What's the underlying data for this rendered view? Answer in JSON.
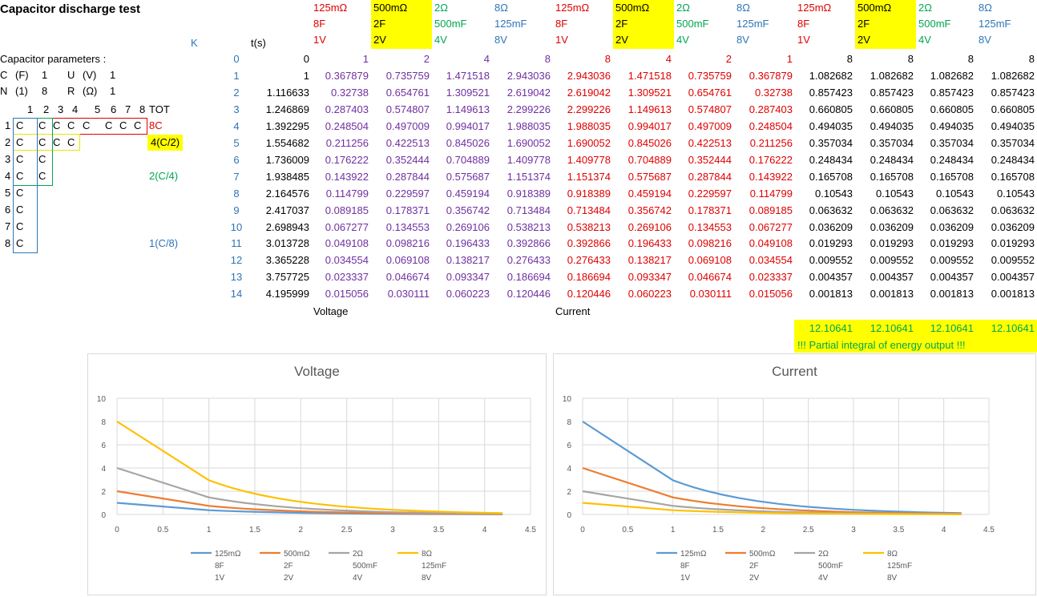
{
  "title": "Capacitor discharge test",
  "params": {
    "heading": "Capacitor parameters :",
    "row1": [
      "C",
      "(F)",
      "1",
      "U",
      "(V)",
      "1"
    ],
    "row2": [
      "N",
      "(1)",
      "8",
      "R",
      "(Ω)",
      "1"
    ]
  },
  "grid": {
    "cols": [
      "1",
      "2",
      "3",
      "4",
      "5",
      "6",
      "7",
      "8",
      "TOT"
    ],
    "rows": [
      {
        "n": "1",
        "cells": [
          "C",
          "C",
          "C",
          "C",
          "C",
          "C",
          "C",
          "C"
        ],
        "tot": "8C",
        "tot_color": "red"
      },
      {
        "n": "2",
        "cells": [
          "C",
          "C",
          "C",
          "C"
        ],
        "tot": "4(C/2)",
        "tot_color": "black"
      },
      {
        "n": "3",
        "cells": [
          "C",
          "C"
        ],
        "tot": "",
        "tot_color": "green"
      },
      {
        "n": "4",
        "cells": [
          "C",
          "C"
        ],
        "tot": "2(C/4)",
        "tot_color": "green"
      },
      {
        "n": "5",
        "cells": [
          "C"
        ],
        "tot": "",
        "tot_color": "blue"
      },
      {
        "n": "6",
        "cells": [
          "C"
        ],
        "tot": "",
        "tot_color": "blue"
      },
      {
        "n": "7",
        "cells": [
          "C"
        ],
        "tot": "",
        "tot_color": "blue"
      },
      {
        "n": "8",
        "cells": [
          "C"
        ],
        "tot": "1(C/8)",
        "tot_color": "blue"
      }
    ]
  },
  "table": {
    "k_label": "K",
    "t_label": "t(s)",
    "headers": [
      [
        "125mΩ",
        "8F",
        "1V"
      ],
      [
        "500mΩ",
        "2F",
        "2V"
      ],
      [
        "2Ω",
        "500mF",
        "4V"
      ],
      [
        "8Ω",
        "125mF",
        "8V"
      ],
      [
        "125mΩ",
        "8F",
        "1V"
      ],
      [
        "500mΩ",
        "2F",
        "2V"
      ],
      [
        "2Ω",
        "500mF",
        "4V"
      ],
      [
        "8Ω",
        "125mF",
        "8V"
      ],
      [
        "125mΩ",
        "8F",
        "1V"
      ],
      [
        "500mΩ",
        "2F",
        "2V"
      ],
      [
        "2Ω",
        "500mF",
        "4V"
      ],
      [
        "8Ω",
        "125mF",
        "8V"
      ]
    ],
    "header_colors": [
      "red",
      "black",
      "green",
      "blue",
      "red",
      "black",
      "green",
      "blue",
      "red",
      "black",
      "green",
      "blue"
    ],
    "rows": [
      {
        "k": "0",
        "t": "0",
        "v": [
          "1",
          "2",
          "4",
          "8",
          "8",
          "4",
          "2",
          "1",
          "8",
          "8",
          "8",
          "8"
        ]
      },
      {
        "k": "1",
        "t": "1",
        "v": [
          "0.367879",
          "0.735759",
          "1.471518",
          "2.943036",
          "2.943036",
          "1.471518",
          "0.735759",
          "0.367879",
          "1.082682",
          "1.082682",
          "1.082682",
          "1.082682"
        ]
      },
      {
        "k": "2",
        "t": "1.116633",
        "v": [
          "0.32738",
          "0.654761",
          "1.309521",
          "2.619042",
          "2.619042",
          "1.309521",
          "0.654761",
          "0.32738",
          "0.857423",
          "0.857423",
          "0.857423",
          "0.857423"
        ]
      },
      {
        "k": "3",
        "t": "1.246869",
        "v": [
          "0.287403",
          "0.574807",
          "1.149613",
          "2.299226",
          "2.299226",
          "1.149613",
          "0.574807",
          "0.287403",
          "0.660805",
          "0.660805",
          "0.660805",
          "0.660805"
        ]
      },
      {
        "k": "4",
        "t": "1.392295",
        "v": [
          "0.248504",
          "0.497009",
          "0.994017",
          "1.988035",
          "1.988035",
          "0.994017",
          "0.497009",
          "0.248504",
          "0.494035",
          "0.494035",
          "0.494035",
          "0.494035"
        ]
      },
      {
        "k": "5",
        "t": "1.554682",
        "v": [
          "0.211256",
          "0.422513",
          "0.845026",
          "1.690052",
          "1.690052",
          "0.845026",
          "0.422513",
          "0.211256",
          "0.357034",
          "0.357034",
          "0.357034",
          "0.357034"
        ]
      },
      {
        "k": "6",
        "t": "1.736009",
        "v": [
          "0.176222",
          "0.352444",
          "0.704889",
          "1.409778",
          "1.409778",
          "0.704889",
          "0.352444",
          "0.176222",
          "0.248434",
          "0.248434",
          "0.248434",
          "0.248434"
        ]
      },
      {
        "k": "7",
        "t": "1.938485",
        "v": [
          "0.143922",
          "0.287844",
          "0.575687",
          "1.151374",
          "1.151374",
          "0.575687",
          "0.287844",
          "0.143922",
          "0.165708",
          "0.165708",
          "0.165708",
          "0.165708"
        ]
      },
      {
        "k": "8",
        "t": "2.164576",
        "v": [
          "0.114799",
          "0.229597",
          "0.459194",
          "0.918389",
          "0.918389",
          "0.459194",
          "0.229597",
          "0.114799",
          "0.10543",
          "0.10543",
          "0.10543",
          "0.10543"
        ]
      },
      {
        "k": "9",
        "t": "2.417037",
        "v": [
          "0.089185",
          "0.178371",
          "0.356742",
          "0.713484",
          "0.713484",
          "0.356742",
          "0.178371",
          "0.089185",
          "0.063632",
          "0.063632",
          "0.063632",
          "0.063632"
        ]
      },
      {
        "k": "10",
        "t": "2.698943",
        "v": [
          "0.067277",
          "0.134553",
          "0.269106",
          "0.538213",
          "0.538213",
          "0.269106",
          "0.134553",
          "0.067277",
          "0.036209",
          "0.036209",
          "0.036209",
          "0.036209"
        ]
      },
      {
        "k": "11",
        "t": "3.013728",
        "v": [
          "0.049108",
          "0.098216",
          "0.196433",
          "0.392866",
          "0.392866",
          "0.196433",
          "0.098216",
          "0.049108",
          "0.019293",
          "0.019293",
          "0.019293",
          "0.019293"
        ]
      },
      {
        "k": "12",
        "t": "3.365228",
        "v": [
          "0.034554",
          "0.069108",
          "0.138217",
          "0.276433",
          "0.276433",
          "0.138217",
          "0.069108",
          "0.034554",
          "0.009552",
          "0.009552",
          "0.009552",
          "0.009552"
        ]
      },
      {
        "k": "13",
        "t": "3.757725",
        "v": [
          "0.023337",
          "0.046674",
          "0.093347",
          "0.186694",
          "0.186694",
          "0.093347",
          "0.046674",
          "0.023337",
          "0.004357",
          "0.004357",
          "0.004357",
          "0.004357"
        ]
      },
      {
        "k": "14",
        "t": "4.195999",
        "v": [
          "0.015056",
          "0.030111",
          "0.060223",
          "0.120446",
          "0.120446",
          "0.060223",
          "0.030111",
          "0.015056",
          "0.001813",
          "0.001813",
          "0.001813",
          "0.001813"
        ]
      }
    ],
    "col_colors": [
      "purple",
      "purple",
      "purple",
      "purple",
      "red",
      "red",
      "red",
      "red",
      "black",
      "black",
      "black",
      "black"
    ],
    "voltage_label": "Voltage",
    "current_label": "Current",
    "totals": [
      "12.10641",
      "12.10641",
      "12.10641",
      "12.10641"
    ],
    "note": "!!! Partial integral of energy output !!!"
  },
  "colors": {
    "s1": "#5b9bd5",
    "s2": "#ed7d31",
    "s3": "#a5a5a5",
    "s4": "#ffc000"
  },
  "chart_data": [
    {
      "type": "line",
      "title": "Voltage",
      "xlim": [
        0,
        4.5
      ],
      "ylim": [
        0,
        10
      ],
      "xticks": [
        "0",
        "0.5",
        "1",
        "1.5",
        "2",
        "2.5",
        "3",
        "3.5",
        "4",
        "4.5"
      ],
      "yticks": [
        "0",
        "2",
        "4",
        "6",
        "8",
        "10"
      ],
      "grid": true,
      "legend_position": "bottom",
      "x": [
        0,
        1,
        1.116633,
        1.246869,
        1.392295,
        1.554682,
        1.736009,
        1.938485,
        2.164576,
        2.417037,
        2.698943,
        3.013728,
        3.365228,
        3.757725,
        4.195999
      ],
      "series": [
        {
          "legend": [
            "125mΩ",
            "8F",
            "1V"
          ],
          "color": "#5b9bd5",
          "values": [
            1,
            0.367879,
            0.32738,
            0.287403,
            0.248504,
            0.211256,
            0.176222,
            0.143922,
            0.114799,
            0.089185,
            0.067277,
            0.049108,
            0.034554,
            0.023337,
            0.015056
          ]
        },
        {
          "legend": [
            "500mΩ",
            "2F",
            "2V"
          ],
          "color": "#ed7d31",
          "values": [
            2,
            0.735759,
            0.654761,
            0.574807,
            0.497009,
            0.422513,
            0.352444,
            0.287844,
            0.229597,
            0.178371,
            0.134553,
            0.098216,
            0.069108,
            0.046674,
            0.030111
          ]
        },
        {
          "legend": [
            "2Ω",
            "500mF",
            "4V"
          ],
          "color": "#a5a5a5",
          "values": [
            4,
            1.471518,
            1.309521,
            1.149613,
            0.994017,
            0.845026,
            0.704889,
            0.575687,
            0.459194,
            0.356742,
            0.269106,
            0.196433,
            0.138217,
            0.093347,
            0.060223
          ]
        },
        {
          "legend": [
            "8Ω",
            "125mF",
            "8V"
          ],
          "color": "#ffc000",
          "values": [
            8,
            2.943036,
            2.619042,
            2.299226,
            1.988035,
            1.690052,
            1.409778,
            1.151374,
            0.918389,
            0.713484,
            0.538213,
            0.392866,
            0.276433,
            0.186694,
            0.120446
          ]
        }
      ]
    },
    {
      "type": "line",
      "title": "Current",
      "xlim": [
        0,
        4.5
      ],
      "ylim": [
        0,
        10
      ],
      "xticks": [
        "0",
        "0.5",
        "1",
        "1.5",
        "2",
        "2.5",
        "3",
        "3.5",
        "4",
        "4.5"
      ],
      "yticks": [
        "0",
        "2",
        "4",
        "6",
        "8",
        "10"
      ],
      "grid": true,
      "legend_position": "bottom",
      "x": [
        0,
        1,
        1.116633,
        1.246869,
        1.392295,
        1.554682,
        1.736009,
        1.938485,
        2.164576,
        2.417037,
        2.698943,
        3.013728,
        3.365228,
        3.757725,
        4.195999
      ],
      "series": [
        {
          "legend": [
            "125mΩ",
            "8F",
            "1V"
          ],
          "color": "#5b9bd5",
          "values": [
            8,
            2.943036,
            2.619042,
            2.299226,
            1.988035,
            1.690052,
            1.409778,
            1.151374,
            0.918389,
            0.713484,
            0.538213,
            0.392866,
            0.276433,
            0.186694,
            0.120446
          ]
        },
        {
          "legend": [
            "500mΩ",
            "2F",
            "2V"
          ],
          "color": "#ed7d31",
          "values": [
            4,
            1.471518,
            1.309521,
            1.149613,
            0.994017,
            0.845026,
            0.704889,
            0.575687,
            0.459194,
            0.356742,
            0.269106,
            0.196433,
            0.138217,
            0.093347,
            0.060223
          ]
        },
        {
          "legend": [
            "2Ω",
            "500mF",
            "4V"
          ],
          "color": "#a5a5a5",
          "values": [
            2,
            0.735759,
            0.654761,
            0.574807,
            0.497009,
            0.422513,
            0.352444,
            0.287844,
            0.229597,
            0.178371,
            0.134553,
            0.098216,
            0.069108,
            0.046674,
            0.030111
          ]
        },
        {
          "legend": [
            "8Ω",
            "125mF",
            "8V"
          ],
          "color": "#ffc000",
          "values": [
            1,
            0.367879,
            0.32738,
            0.287403,
            0.248504,
            0.211256,
            0.176222,
            0.143922,
            0.114799,
            0.089185,
            0.067277,
            0.049108,
            0.034554,
            0.023337,
            0.015056
          ]
        }
      ]
    }
  ]
}
